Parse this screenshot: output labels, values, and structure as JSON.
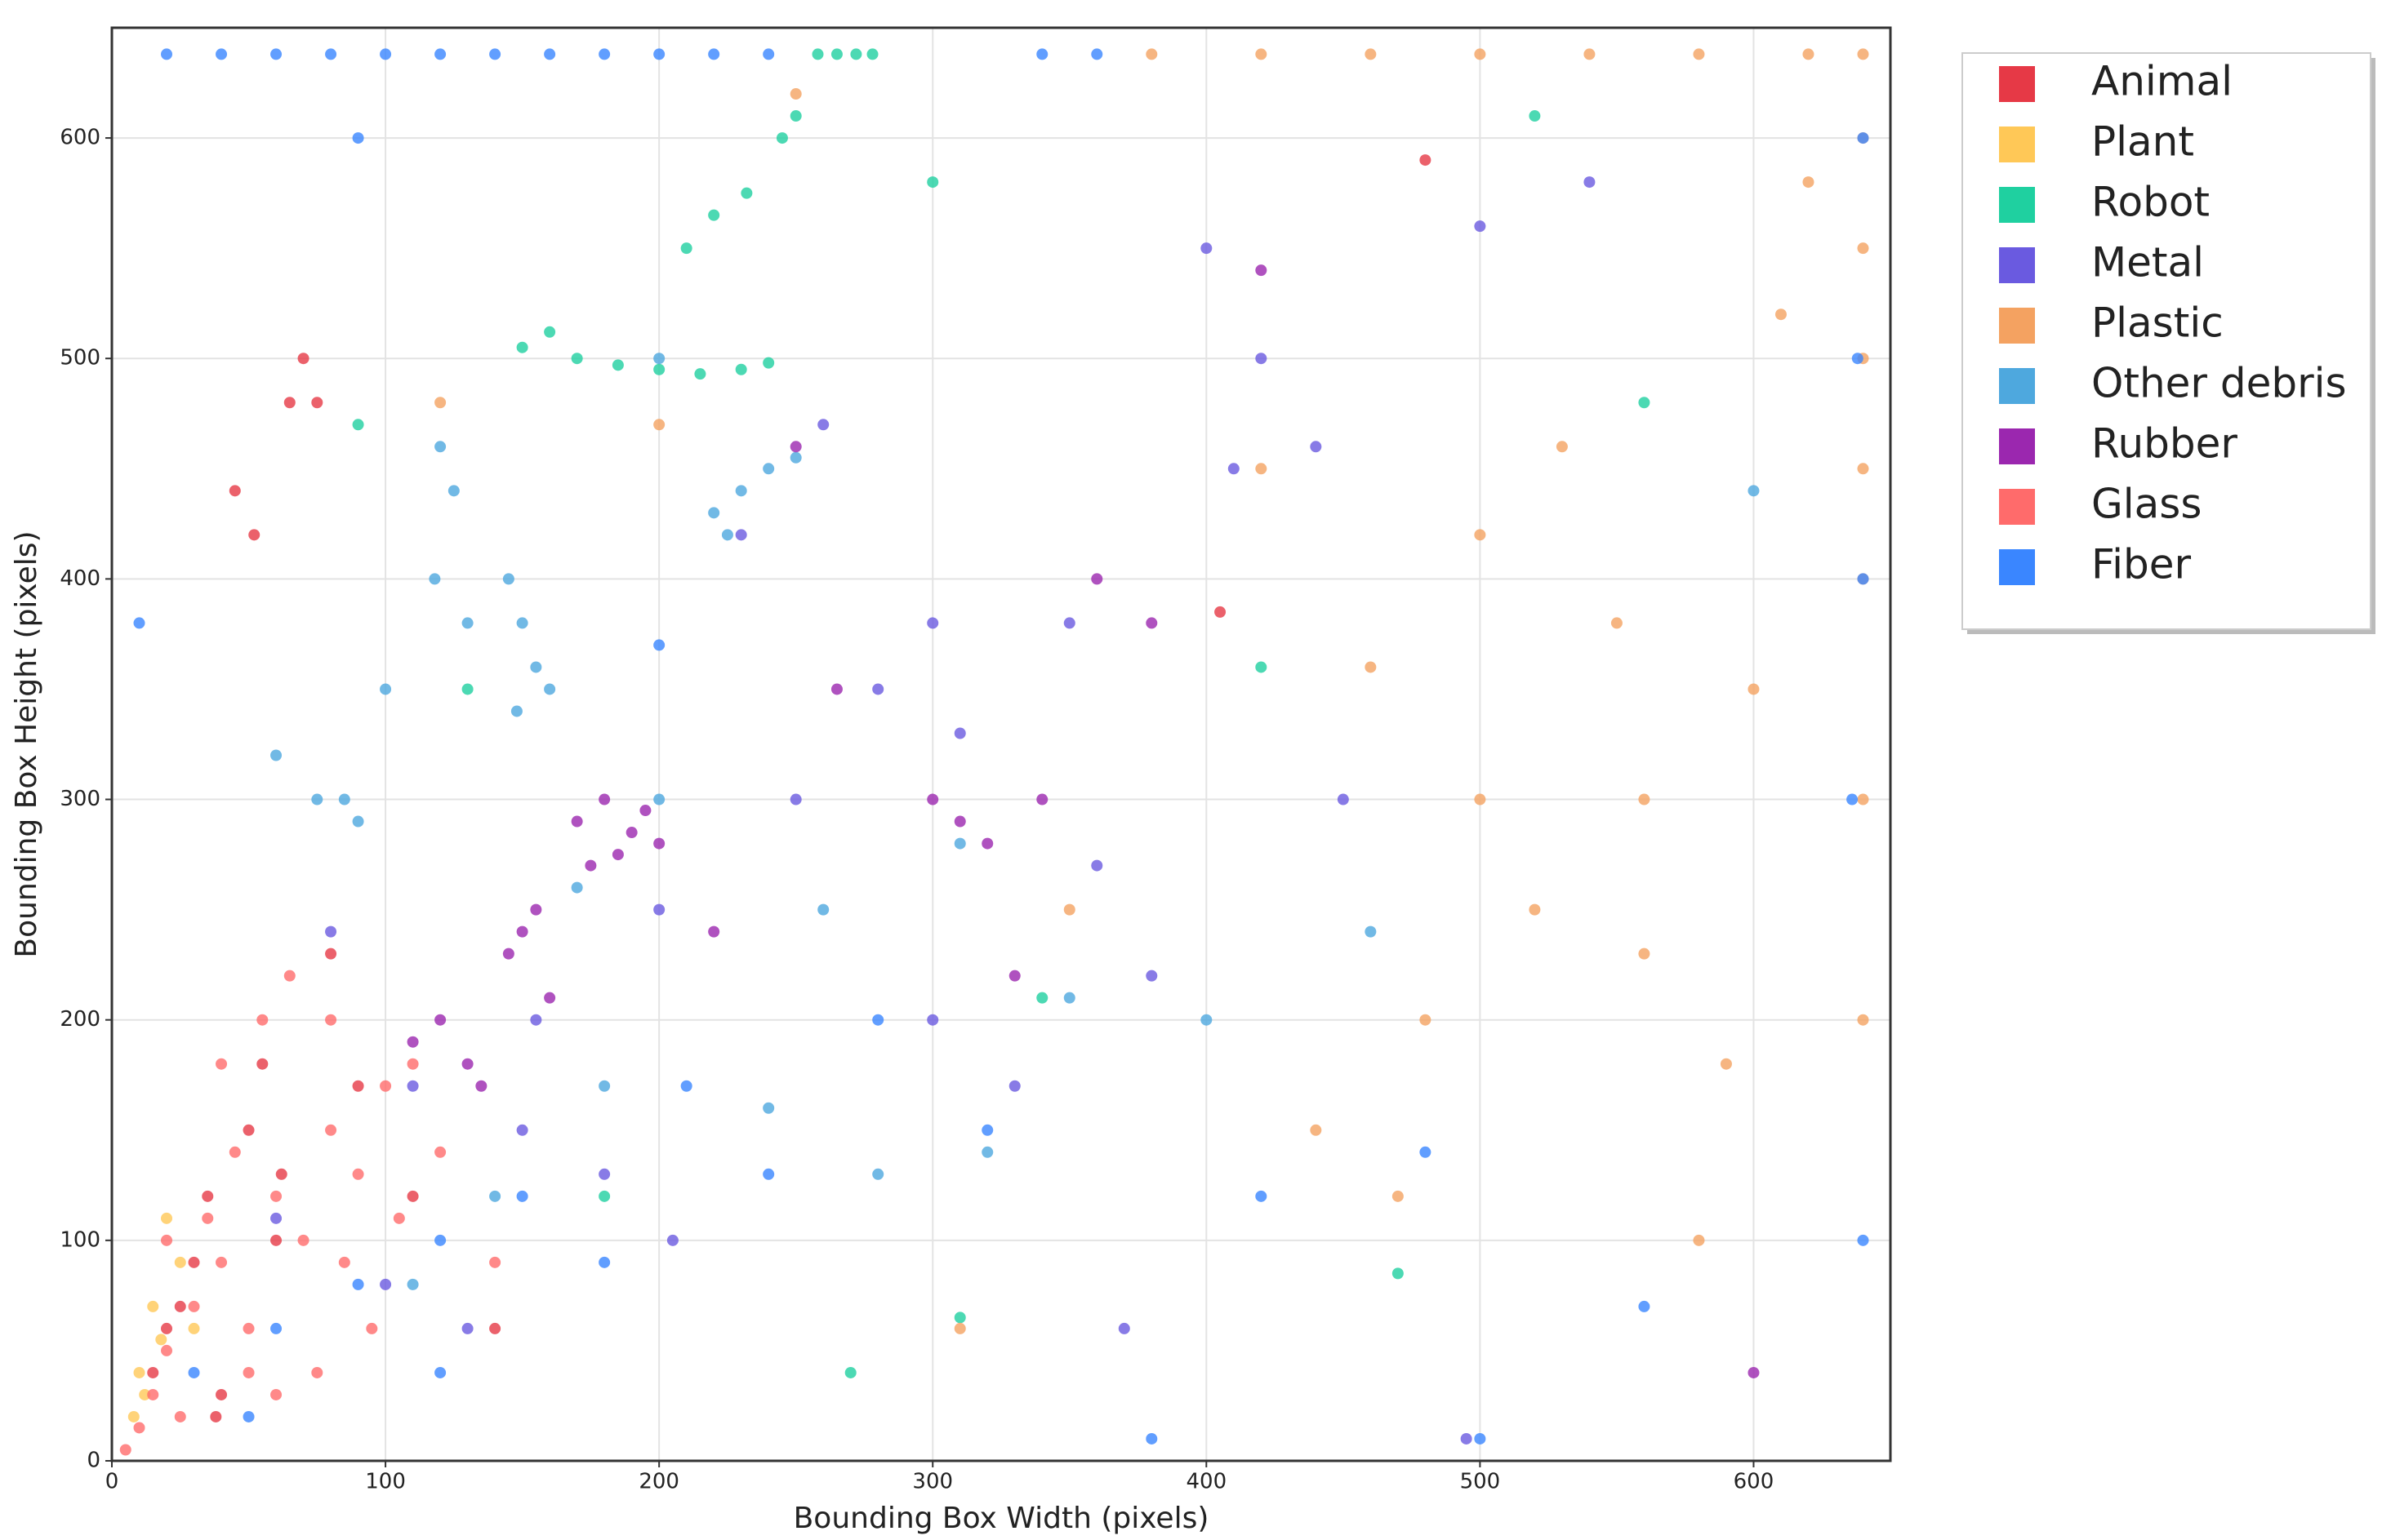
{
  "chart_data": {
    "type": "scatter",
    "x_label": "Bounding Box Width (pixels)",
    "y_label": "Bounding Box Height (pixels)",
    "xlim": [
      0,
      650
    ],
    "ylim": [
      0,
      650
    ],
    "xticks": [
      0,
      100,
      200,
      300,
      400,
      500,
      600
    ],
    "yticks": [
      0,
      100,
      200,
      300,
      400,
      500,
      600
    ],
    "grid": true,
    "legend": "right",
    "series": [
      {
        "name": "Animal",
        "color": "#e63946",
        "x": [
          20,
          35,
          50,
          60,
          45,
          70,
          30,
          15,
          80,
          55,
          25,
          65,
          40,
          90,
          110,
          140,
          52,
          75,
          480,
          405,
          62,
          38
        ],
        "values": [
          60,
          120,
          150,
          100,
          440,
          500,
          90,
          40,
          230,
          180,
          70,
          480,
          30,
          170,
          120,
          60,
          420,
          480,
          590,
          385,
          130,
          20
        ]
      },
      {
        "name": "Plant",
        "color": "#ffc857",
        "x": [
          10,
          15,
          25,
          12,
          20,
          30,
          8,
          18
        ],
        "values": [
          40,
          70,
          90,
          30,
          110,
          60,
          20,
          55
        ]
      },
      {
        "name": "Robot",
        "color": "#1fd0a0",
        "x": [
          258,
          265,
          272,
          278,
          150,
          160,
          170,
          185,
          200,
          215,
          230,
          240,
          210,
          220,
          232,
          245,
          250,
          300,
          340,
          470,
          560,
          420,
          130,
          90,
          310,
          520,
          270,
          180
        ],
        "values": [
          638,
          638,
          638,
          638,
          505,
          512,
          500,
          497,
          495,
          493,
          495,
          498,
          550,
          565,
          575,
          600,
          610,
          580,
          210,
          85,
          480,
          360,
          350,
          470,
          65,
          610,
          40,
          120
        ]
      },
      {
        "name": "Metal",
        "color": "#6a5ae0",
        "x": [
          100,
          150,
          200,
          250,
          300,
          350,
          400,
          450,
          500,
          420,
          380,
          330,
          280,
          230,
          180,
          130,
          80,
          60,
          440,
          540,
          495,
          360,
          310,
          260,
          205,
          155,
          110,
          370,
          410,
          300
        ],
        "values": [
          80,
          150,
          250,
          300,
          200,
          380,
          550,
          300,
          560,
          500,
          220,
          170,
          350,
          420,
          130,
          60,
          240,
          110,
          460,
          580,
          10,
          270,
          330,
          470,
          100,
          200,
          170,
          60,
          450,
          380
        ]
      },
      {
        "name": "Plastic",
        "color": "#f4a261",
        "x": [
          380,
          420,
          460,
          500,
          540,
          580,
          620,
          640,
          640,
          640,
          640,
          640,
          640,
          600,
          560,
          520,
          480,
          440,
          500,
          550,
          590,
          620,
          470,
          530,
          610,
          350,
          310,
          420,
          580,
          560,
          500,
          460,
          120,
          200,
          250,
          640,
          640
        ],
        "values": [
          638,
          638,
          638,
          638,
          638,
          638,
          638,
          638,
          600,
          550,
          500,
          450,
          400,
          350,
          300,
          250,
          200,
          150,
          420,
          380,
          180,
          580,
          120,
          460,
          520,
          250,
          60,
          450,
          100,
          230,
          300,
          360,
          480,
          470,
          620,
          300,
          200
        ]
      },
      {
        "name": "Other debris",
        "color": "#4ea8de",
        "x": [
          120,
          125,
          118,
          130,
          145,
          150,
          155,
          160,
          148,
          220,
          230,
          240,
          250,
          225,
          75,
          85,
          90,
          60,
          100,
          170,
          200,
          260,
          310,
          350,
          280,
          180,
          140,
          110,
          200,
          320,
          400,
          460,
          600,
          240
        ],
        "values": [
          460,
          440,
          400,
          380,
          400,
          380,
          360,
          350,
          340,
          430,
          440,
          450,
          455,
          420,
          300,
          300,
          290,
          320,
          350,
          260,
          300,
          250,
          280,
          210,
          130,
          170,
          120,
          80,
          500,
          140,
          200,
          240,
          440,
          160
        ]
      },
      {
        "name": "Rubber",
        "color": "#9b27af",
        "x": [
          170,
          180,
          190,
          200,
          175,
          185,
          195,
          150,
          145,
          155,
          160,
          110,
          120,
          130,
          135,
          310,
          320,
          300,
          330,
          265,
          360,
          380,
          420,
          250,
          220,
          600,
          340
        ],
        "values": [
          290,
          300,
          285,
          280,
          270,
          275,
          295,
          240,
          230,
          250,
          210,
          190,
          200,
          180,
          170,
          290,
          280,
          300,
          220,
          350,
          400,
          380,
          540,
          460,
          240,
          40,
          300
        ]
      },
      {
        "name": "Glass",
        "color": "#ff6b6b",
        "x": [
          5,
          10,
          15,
          20,
          30,
          40,
          50,
          60,
          70,
          80,
          90,
          100,
          110,
          25,
          35,
          45,
          55,
          65,
          75,
          85,
          95,
          105,
          120,
          140,
          40,
          60,
          80,
          20,
          50
        ],
        "values": [
          5,
          15,
          30,
          50,
          70,
          90,
          60,
          120,
          100,
          150,
          130,
          170,
          180,
          20,
          110,
          140,
          200,
          220,
          40,
          90,
          60,
          110,
          140,
          90,
          180,
          30,
          200,
          100,
          40
        ]
      },
      {
        "name": "Fiber",
        "color": "#3a86ff",
        "x": [
          20,
          40,
          60,
          80,
          100,
          120,
          140,
          160,
          180,
          200,
          220,
          240,
          340,
          360,
          640,
          638,
          640,
          636,
          640,
          30,
          60,
          90,
          120,
          150,
          180,
          210,
          240,
          280,
          320,
          380,
          420,
          480,
          560,
          10,
          500,
          90,
          200,
          50,
          120
        ],
        "values": [
          638,
          638,
          638,
          638,
          638,
          638,
          638,
          638,
          638,
          638,
          638,
          638,
          638,
          638,
          600,
          500,
          400,
          300,
          100,
          40,
          60,
          80,
          100,
          120,
          90,
          170,
          130,
          200,
          150,
          10,
          120,
          140,
          70,
          380,
          10,
          600,
          370,
          20,
          40
        ]
      }
    ]
  }
}
